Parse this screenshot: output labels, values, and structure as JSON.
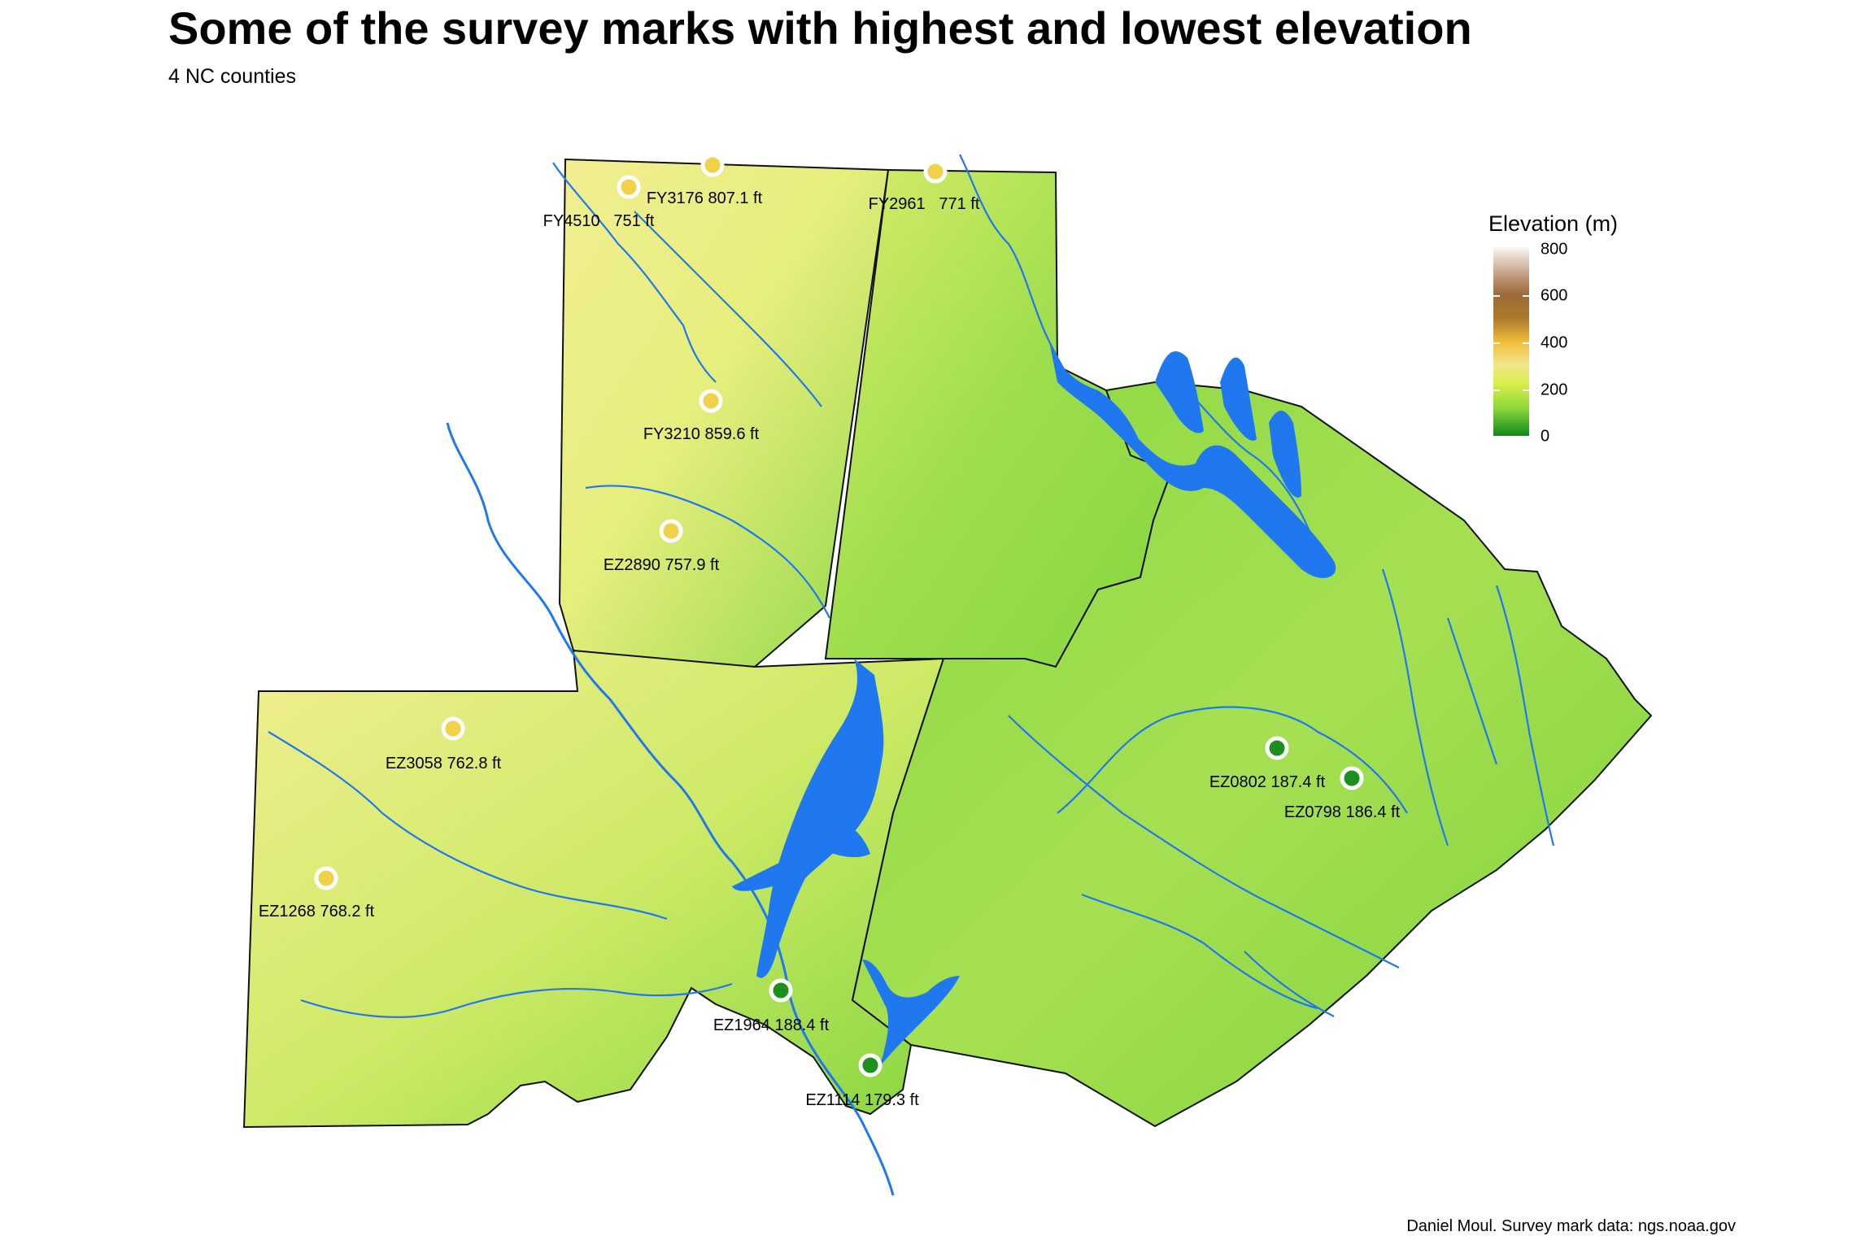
{
  "title": "Some of the survey marks with highest and lowest elevation",
  "subtitle": "4 NC counties",
  "caption": "Daniel Moul. Survey mark data: ngs.noaa.gov",
  "legend": {
    "title": "Elevation (m)",
    "ticks": [
      "800",
      "600",
      "400",
      "200",
      "0"
    ]
  },
  "colors": {
    "water": "#1f78f0",
    "high_mark": "#f0d24a",
    "low_mark": "#1e8f1e",
    "land_low": "#6fd13a",
    "land_high": "#f2ee8a"
  },
  "marks": [
    {
      "id": "FY4510",
      "label": "FY4510   751 ft",
      "category": "high"
    },
    {
      "id": "FY3176",
      "label": "FY3176 807.1 ft",
      "category": "high"
    },
    {
      "id": "FY2961",
      "label": "FY2961   771 ft",
      "category": "high"
    },
    {
      "id": "FY3210",
      "label": "FY3210 859.6 ft",
      "category": "high"
    },
    {
      "id": "EZ2890",
      "label": "EZ2890 757.9 ft",
      "category": "high"
    },
    {
      "id": "EZ3058",
      "label": "EZ3058 762.8 ft",
      "category": "high"
    },
    {
      "id": "EZ1268",
      "label": "EZ1268 768.2 ft",
      "category": "high"
    },
    {
      "id": "EZ1964",
      "label": "EZ1964 188.4 ft",
      "category": "low"
    },
    {
      "id": "EZ1114",
      "label": "EZ1114 179.3 ft",
      "category": "low"
    },
    {
      "id": "EZ0802",
      "label": "EZ0802 187.4 ft",
      "category": "low"
    },
    {
      "id": "EZ0798",
      "label": "EZ0798 186.4 ft",
      "category": "low"
    }
  ]
}
